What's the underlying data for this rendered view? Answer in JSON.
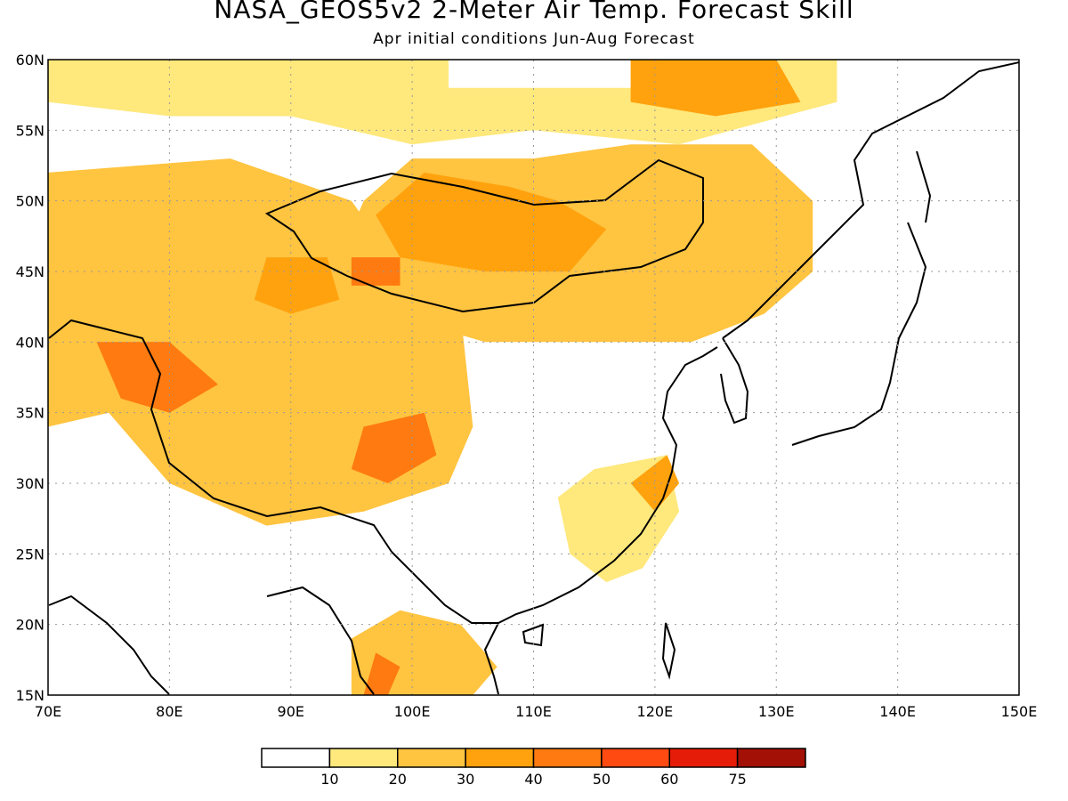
{
  "header": {
    "title": "NASA_GEOS5v2 2-Meter Air Temp. Forecast Skill",
    "subtitle": "Apr initial conditions  Jun-Aug Forecast"
  },
  "map": {
    "lon_range": [
      70,
      150
    ],
    "lat_range": [
      15,
      60
    ],
    "lon_ticks": [
      {
        "v": 70,
        "label": "70E"
      },
      {
        "v": 80,
        "label": "80E"
      },
      {
        "v": 90,
        "label": "90E"
      },
      {
        "v": 100,
        "label": "100E"
      },
      {
        "v": 110,
        "label": "110E"
      },
      {
        "v": 120,
        "label": "120E"
      },
      {
        "v": 130,
        "label": "130E"
      },
      {
        "v": 140,
        "label": "140E"
      },
      {
        "v": 150,
        "label": "150E"
      }
    ],
    "lat_ticks": [
      {
        "v": 15,
        "label": "15N"
      },
      {
        "v": 20,
        "label": "20N"
      },
      {
        "v": 25,
        "label": "25N"
      },
      {
        "v": 30,
        "label": "30N"
      },
      {
        "v": 35,
        "label": "35N"
      },
      {
        "v": 40,
        "label": "40N"
      },
      {
        "v": 45,
        "label": "45N"
      },
      {
        "v": 50,
        "label": "50N"
      },
      {
        "v": 55,
        "label": "55N"
      },
      {
        "v": 60,
        "label": "60N"
      }
    ],
    "grid": "dotted"
  },
  "colorbar": {
    "colors": [
      "#ffffff",
      "#ffe87c",
      "#ffc440",
      "#ffa20e",
      "#ff7a10",
      "#ff4a12",
      "#e51d08",
      "#a31006"
    ],
    "labels": [
      "10",
      "20",
      "30",
      "40",
      "50",
      "60",
      "75"
    ]
  },
  "skill_regions": [
    {
      "name": "siberia-north",
      "level": 1,
      "pts": [
        [
          70,
          60
        ],
        [
          103,
          60
        ],
        [
          103,
          58
        ],
        [
          118,
          58
        ],
        [
          120,
          60
        ],
        [
          135,
          60
        ],
        [
          135,
          57
        ],
        [
          122,
          54
        ],
        [
          110,
          55
        ],
        [
          100,
          54
        ],
        [
          90,
          56
        ],
        [
          80,
          56
        ],
        [
          70,
          57
        ]
      ]
    },
    {
      "name": "mongolia-manchuria",
      "level": 2,
      "pts": [
        [
          100,
          53
        ],
        [
          110,
          53
        ],
        [
          118,
          54
        ],
        [
          128,
          54
        ],
        [
          133,
          50
        ],
        [
          133,
          45
        ],
        [
          129,
          42
        ],
        [
          123,
          40
        ],
        [
          115,
          40
        ],
        [
          106,
          40
        ],
        [
          98,
          42
        ],
        [
          93,
          44
        ],
        [
          96,
          50
        ]
      ]
    },
    {
      "name": "central-asia-tibet",
      "level": 2,
      "pts": [
        [
          70,
          52
        ],
        [
          85,
          53
        ],
        [
          95,
          50
        ],
        [
          100,
          44
        ],
        [
          104,
          42
        ],
        [
          105,
          34
        ],
        [
          103,
          30
        ],
        [
          96,
          28
        ],
        [
          88,
          27
        ],
        [
          80,
          30
        ],
        [
          75,
          35
        ],
        [
          70,
          34
        ]
      ]
    },
    {
      "name": "se-china",
      "level": 1,
      "pts": [
        [
          112,
          29
        ],
        [
          115,
          31
        ],
        [
          121,
          32
        ],
        [
          122,
          28
        ],
        [
          119,
          24
        ],
        [
          116,
          23
        ],
        [
          113,
          25
        ]
      ]
    },
    {
      "name": "indochina",
      "level": 2,
      "pts": [
        [
          95,
          15
        ],
        [
          95,
          19
        ],
        [
          99,
          21
        ],
        [
          104,
          20
        ],
        [
          107,
          17
        ],
        [
          105,
          15
        ]
      ]
    },
    {
      "name": "yangtze-delta",
      "level": 3,
      "pts": [
        [
          118,
          30
        ],
        [
          121,
          32
        ],
        [
          122,
          30
        ],
        [
          120,
          28
        ]
      ]
    },
    {
      "name": "mongolia-core",
      "level": 3,
      "pts": [
        [
          101,
          52
        ],
        [
          108,
          51
        ],
        [
          112,
          50
        ],
        [
          116,
          48
        ],
        [
          113,
          45
        ],
        [
          106,
          45
        ],
        [
          99,
          46
        ],
        [
          97,
          49
        ]
      ]
    },
    {
      "name": "dzungaria",
      "level": 3,
      "pts": [
        [
          88,
          46
        ],
        [
          93,
          46
        ],
        [
          94,
          43
        ],
        [
          90,
          42
        ],
        [
          87,
          43
        ]
      ]
    },
    {
      "name": "tarim",
      "level": 4,
      "pts": [
        [
          74,
          40
        ],
        [
          80,
          40
        ],
        [
          84,
          37
        ],
        [
          80,
          35
        ],
        [
          76,
          36
        ]
      ]
    },
    {
      "name": "tibet-east",
      "level": 4,
      "pts": [
        [
          96,
          34
        ],
        [
          101,
          35
        ],
        [
          102,
          32
        ],
        [
          98,
          30
        ],
        [
          95,
          31
        ]
      ]
    },
    {
      "name": "altai",
      "level": 4,
      "pts": [
        [
          95,
          46
        ],
        [
          99,
          46
        ],
        [
          99,
          44
        ],
        [
          95,
          44
        ]
      ]
    },
    {
      "name": "east-siberia",
      "level": 3,
      "pts": [
        [
          118,
          60
        ],
        [
          130,
          60
        ],
        [
          132,
          57
        ],
        [
          125,
          56
        ],
        [
          118,
          57
        ]
      ]
    },
    {
      "name": "burma",
      "level": 4,
      "pts": [
        [
          96,
          15
        ],
        [
          97,
          18
        ],
        [
          99,
          17
        ],
        [
          98,
          15
        ]
      ]
    }
  ]
}
